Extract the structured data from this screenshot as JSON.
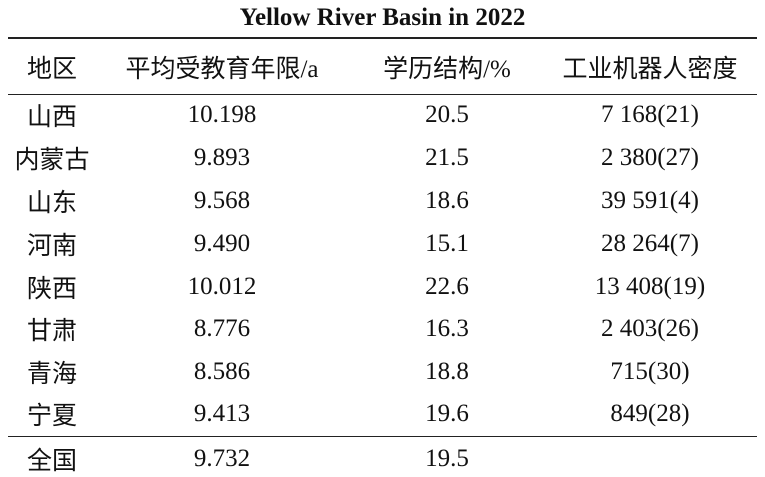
{
  "header": {
    "title": "Yellow River Basin in 2022"
  },
  "table": {
    "columns": [
      "地区",
      "平均受教育年限/a",
      "学历结构/%",
      "工业机器人密度"
    ],
    "rows": [
      [
        "山西",
        "10.198",
        "20.5",
        "7 168(21)"
      ],
      [
        "内蒙古",
        "9.893",
        "21.5",
        "2 380(27)"
      ],
      [
        "山东",
        "9.568",
        "18.6",
        "39 591(4)"
      ],
      [
        "河南",
        "9.490",
        "15.1",
        "28 264(7)"
      ],
      [
        "陕西",
        "10.012",
        "22.6",
        "13 408(19)"
      ],
      [
        "甘肃",
        "8.776",
        "16.3",
        "2 403(26)"
      ],
      [
        "青海",
        "8.586",
        "18.8",
        "715(30)"
      ],
      [
        "宁夏",
        "9.413",
        "19.6",
        "849(28)"
      ],
      [
        "全国",
        "9.732",
        "19.5"
      ]
    ]
  }
}
